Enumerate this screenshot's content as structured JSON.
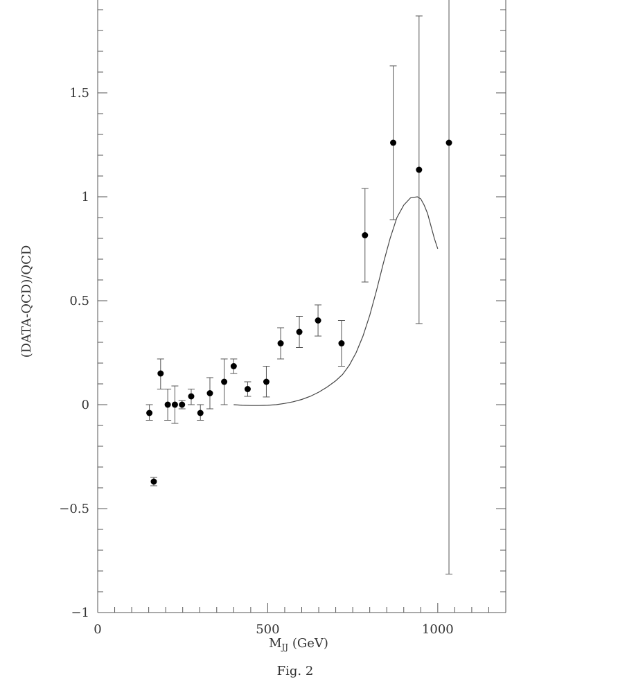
{
  "chart_data": {
    "type": "scatter",
    "title": "",
    "xlabel": "M",
    "xlabel_sub": "JJ",
    "xlabel_unit": " (GeV)",
    "ylabel": "(DATA-QCD)/QCD",
    "caption": "Fig. 2",
    "xlim": [
      0,
      1200
    ],
    "ylim": [
      -1,
      1.95
    ],
    "x_major_ticks": [
      0,
      500,
      1000
    ],
    "x_minor_step": 50,
    "y_major_ticks": [
      -1,
      -0.5,
      0,
      0.5,
      1,
      1.5
    ],
    "y_tick_labels": [
      "−1",
      "−0.5",
      "0",
      "0.5",
      "1",
      "1.5"
    ],
    "y_minor_step": 0.1,
    "grid": false,
    "legend": "none",
    "colors": {
      "marker": "#000000",
      "line": "#444444",
      "axis": "#555555"
    },
    "series": [
      {
        "kind": "points_with_error_bars",
        "points": [
          {
            "x": 152,
            "y": -0.04,
            "lo": -0.075,
            "hi": 0.0
          },
          {
            "x": 165,
            "y": -0.37,
            "lo": -0.39,
            "hi": -0.35
          },
          {
            "x": 185,
            "y": 0.15,
            "lo": 0.075,
            "hi": 0.22
          },
          {
            "x": 206,
            "y": 0.0,
            "lo": -0.075,
            "hi": 0.075
          },
          {
            "x": 227,
            "y": 0.0,
            "lo": -0.09,
            "hi": 0.09
          },
          {
            "x": 248,
            "y": 0.0,
            "lo": -0.02,
            "hi": 0.02
          },
          {
            "x": 275,
            "y": 0.04,
            "lo": 0.0,
            "hi": 0.075
          },
          {
            "x": 302,
            "y": -0.04,
            "lo": -0.075,
            "hi": 0.0
          },
          {
            "x": 330,
            "y": 0.055,
            "lo": -0.02,
            "hi": 0.13
          },
          {
            "x": 372,
            "y": 0.11,
            "lo": 0.0,
            "hi": 0.22
          },
          {
            "x": 400,
            "y": 0.185,
            "lo": 0.15,
            "hi": 0.22
          },
          {
            "x": 441,
            "y": 0.075,
            "lo": 0.04,
            "hi": 0.11
          },
          {
            "x": 496,
            "y": 0.11,
            "lo": 0.037,
            "hi": 0.185
          },
          {
            "x": 538,
            "y": 0.295,
            "lo": 0.22,
            "hi": 0.37
          },
          {
            "x": 593,
            "y": 0.35,
            "lo": 0.275,
            "hi": 0.425
          },
          {
            "x": 648,
            "y": 0.405,
            "lo": 0.33,
            "hi": 0.48
          },
          {
            "x": 717,
            "y": 0.295,
            "lo": 0.185,
            "hi": 0.405
          },
          {
            "x": 786,
            "y": 0.815,
            "lo": 0.59,
            "hi": 1.04
          },
          {
            "x": 869,
            "y": 1.26,
            "lo": 0.89,
            "hi": 1.63
          },
          {
            "x": 945,
            "y": 1.13,
            "lo": 0.39,
            "hi": 1.87
          },
          {
            "x": 1033,
            "y": 1.26,
            "lo": -0.815,
            "hi": 1.95
          }
        ]
      },
      {
        "kind": "curve",
        "x": [
          400,
          425,
          450,
          475,
          500,
          525,
          550,
          575,
          600,
          625,
          650,
          675,
          700,
          720,
          740,
          760,
          780,
          800,
          820,
          840,
          860,
          880,
          900,
          920,
          940,
          950,
          960,
          970,
          980,
          990,
          1000
        ],
        "y": [
          0.0,
          -0.003,
          -0.004,
          -0.004,
          -0.003,
          0.0,
          0.006,
          0.014,
          0.025,
          0.04,
          0.06,
          0.085,
          0.115,
          0.145,
          0.19,
          0.25,
          0.33,
          0.43,
          0.55,
          0.68,
          0.8,
          0.9,
          0.96,
          0.995,
          1.0,
          0.99,
          0.96,
          0.92,
          0.86,
          0.8,
          0.75
        ]
      }
    ]
  }
}
